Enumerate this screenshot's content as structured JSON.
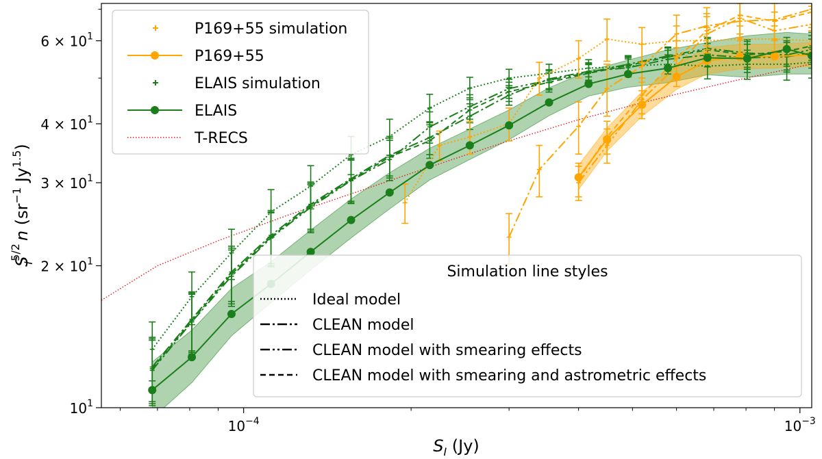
{
  "chart_data": {
    "type": "line",
    "xscale": "log",
    "yscale": "log",
    "xlabel": "S_I (Jy)",
    "ylabel": "S_I^{5/2} n (sr^-1 Jy^1.5)",
    "xlim": [
      5.55e-05,
      0.00105
    ],
    "ylim": [
      10,
      72
    ],
    "x_ticks": [
      {
        "value": 0.0001,
        "base": "10",
        "exp": "−4"
      },
      {
        "value": 0.001,
        "base": "10",
        "exp": "−3"
      }
    ],
    "y_ticks": [
      {
        "value": 10,
        "base": "10",
        "exp": "1",
        "mant": ""
      },
      {
        "value": 20,
        "base": "10",
        "exp": "1",
        "mant": "2 × "
      },
      {
        "value": 30,
        "base": "10",
        "exp": "1",
        "mant": "3 × "
      },
      {
        "value": 40,
        "base": "10",
        "exp": "1",
        "mant": "4 × "
      },
      {
        "value": 60,
        "base": "10",
        "exp": "1",
        "mant": "6 × "
      }
    ],
    "colors": {
      "elais": "#1a7f1a",
      "p169": "#ffa500",
      "trecs": "#e8161b"
    },
    "legend_main": {
      "position": "top-left",
      "entries": [
        {
          "label": "P169+55 simulation",
          "kind": "cross",
          "color": "#ffa500"
        },
        {
          "label": "P169+55",
          "kind": "line-dot",
          "color": "#ffa500"
        },
        {
          "label": "ELAIS simulation",
          "kind": "cross",
          "color": "#1a7f1a"
        },
        {
          "label": "ELAIS",
          "kind": "line-dot",
          "color": "#1a7f1a"
        },
        {
          "label": "T-RECS",
          "kind": "dotted",
          "color": "#e8161b"
        }
      ]
    },
    "legend_styles": {
      "title": "Simulation line styles",
      "position": "lower-right",
      "entries": [
        {
          "label": "Ideal model",
          "dash": "2,3"
        },
        {
          "label": "CLEAN model",
          "dash": "14,4,3,4"
        },
        {
          "label": "CLEAN model with smearing effects",
          "dash": "14,4,3,4,3,4"
        },
        {
          "label": "CLEAN model with smearing and astrometric effects",
          "dash": "8,5"
        }
      ]
    },
    "trecs": {
      "x": [
        5.55e-05,
        7e-05,
        9e-05,
        0.00012,
        0.00016,
        0.0002,
        0.00025,
        0.0003,
        0.0004,
        0.0005,
        0.0006,
        0.0007,
        0.0008,
        0.0009,
        0.00105
      ],
      "y": [
        16.9,
        20.0,
        22.6,
        25.6,
        28.7,
        31.4,
        34.3,
        36.8,
        40.8,
        43.8,
        46.2,
        48.2,
        50.0,
        51.5,
        53.6
      ]
    },
    "elais": {
      "x": [
        6.85e-05,
        8.07e-05,
        9.51e-05,
        0.000112,
        0.000132,
        0.000156,
        0.000183,
        0.000216,
        0.000255,
        0.0003,
        0.000354,
        0.000417,
        0.000491,
        0.000579,
        0.000682,
        0.000804,
        0.000947,
        0.00105
      ],
      "y": [
        10.9,
        12.8,
        15.8,
        18.3,
        21.4,
        25.0,
        28.6,
        32.7,
        36.0,
        39.7,
        44.4,
        48.6,
        51.0,
        52.5,
        55.2,
        55.0,
        57.6,
        55.8
      ],
      "band_low": [
        9.5,
        11.3,
        14.2,
        16.7,
        19.6,
        22.9,
        26.4,
        30.4,
        33.6,
        37.0,
        41.6,
        45.8,
        47.8,
        48.9,
        50.8,
        50.2,
        51.0,
        51.0
      ],
      "band_high": [
        12.5,
        14.6,
        17.9,
        20.4,
        23.8,
        27.7,
        31.5,
        35.5,
        39.0,
        42.8,
        47.7,
        51.8,
        54.6,
        57.4,
        59.5,
        61.5,
        62.5,
        62.0
      ]
    },
    "elais_ideal": {
      "x": [
        6.85e-05,
        8.07e-05,
        9.51e-05,
        0.000112,
        0.000132,
        0.000156,
        0.000183,
        0.000216,
        0.000255,
        0.0003,
        0.000354,
        0.000417,
        0.000491,
        0.000579,
        0.000682,
        0.000804,
        0.000947,
        0.00105
      ],
      "y": [
        13.3,
        17.2,
        21.3,
        26.0,
        29.5,
        34.4,
        37.6,
        43.2,
        47.6,
        50.0,
        51.2,
        52.5,
        53.0,
        53.5,
        53.0,
        53.5,
        53.5,
        54.0
      ]
    },
    "elais_clean": {
      "x": [
        6.85e-05,
        8.07e-05,
        9.51e-05,
        0.000112,
        0.000132,
        0.000156,
        0.000183,
        0.000216,
        0.000255,
        0.0003,
        0.000354,
        0.000417,
        0.000491,
        0.000579,
        0.000682,
        0.000804,
        0.000947,
        0.00105
      ],
      "y": [
        12.2,
        15.4,
        19.4,
        23.2,
        27.0,
        30.6,
        34.3,
        37.4,
        41.5,
        46.0,
        49.8,
        51.7,
        52.6,
        54.8,
        56.0,
        55.2,
        55.5,
        56.5
      ]
    },
    "elais_smear": {
      "x": [
        6.85e-05,
        8.07e-05,
        9.51e-05,
        0.000112,
        0.000132,
        0.000156,
        0.000183,
        0.000216,
        0.000255,
        0.0003,
        0.000354,
        0.000417,
        0.000491,
        0.000579,
        0.000682,
        0.000804,
        0.000947,
        0.00105
      ],
      "y": [
        12.0,
        15.2,
        19.0,
        22.9,
        26.6,
        30.3,
        33.6,
        39.4,
        43.5,
        47.5,
        49.5,
        51.4,
        53.5,
        55.7,
        57.8,
        56.5,
        56.0,
        57.5
      ]
    },
    "elais_astro": {
      "x": [
        6.85e-05,
        8.07e-05,
        9.51e-05,
        0.000112,
        0.000132,
        0.000156,
        0.000183,
        0.000216,
        0.000255,
        0.0003,
        0.000354,
        0.000417,
        0.000491,
        0.000579,
        0.000682,
        0.000804,
        0.000947,
        0.00105
      ],
      "y": [
        12.1,
        15.3,
        19.2,
        23.0,
        26.8,
        30.4,
        34.0,
        36.8,
        42.8,
        46.8,
        49.0,
        51.2,
        53.2,
        55.4,
        57.4,
        56.0,
        57.0,
        58.5
      ]
    },
    "elais_sim_err": [
      1.9,
      2.2,
      2.6,
      3.0,
      3.1,
      3.2,
      3.3,
      3.0,
      2.6,
      2.2,
      2.3,
      2.2,
      2.3,
      2.5,
      3.2,
      3.8,
      4.0,
      4.0
    ],
    "p169": {
      "x": [
        0.0004,
        0.00045,
        0.00052,
        0.0006,
        0.00068,
        0.00078,
        0.0009,
        0.00105
      ],
      "y": [
        30.8,
        37.1,
        43.9,
        50.3,
        54.4,
        55.5,
        55.6,
        56.0
      ],
      "band_low": [
        29.0,
        35.0,
        41.5,
        47.3,
        51.0,
        52.3,
        52.5,
        53.0
      ],
      "band_high": [
        32.7,
        39.2,
        46.8,
        53.5,
        58.0,
        59.0,
        59.0,
        59.5
      ]
    },
    "p169_ideal": {
      "x": [
        0.000195,
        0.000225,
        0.000255,
        0.0003,
        0.00034,
        0.0004,
        0.00045,
        0.00052,
        0.0006,
        0.00068,
        0.00078,
        0.0009,
        0.00105
      ],
      "y": [
        27.2,
        36.0,
        37.5,
        40.0,
        50.0,
        55.0,
        60.5,
        59.0,
        60.0,
        60.0,
        60.5,
        60.5,
        60.0
      ],
      "err": [
        2.6,
        2.6,
        3.0,
        3.2,
        4.0,
        5.0,
        6.2,
        5.0,
        4.5,
        4.0,
        4.0,
        4.0,
        4.0
      ]
    },
    "p169_clean": {
      "x": [
        0.0003,
        0.00034,
        0.0004,
        0.00045,
        0.00052,
        0.0006,
        0.00068,
        0.00078,
        0.0009,
        0.00105
      ],
      "y": [
        23.0,
        32.0,
        39.5,
        47.5,
        53.0,
        62.0,
        64.5,
        66.0,
        66.5,
        70.0
      ],
      "err": [
        2.8,
        4.0,
        5.0,
        6.0,
        6.0,
        6.0,
        6.0,
        6.0,
        6.0,
        6.0
      ]
    },
    "p169_smear": {
      "x": [
        0.0004,
        0.00045,
        0.00052,
        0.0006,
        0.00068,
        0.00078,
        0.0009,
        0.00105
      ],
      "y": [
        30.0,
        36.0,
        45.0,
        53.0,
        62.0,
        67.0,
        63.0,
        65.0
      ],
      "err": [
        2.5,
        3.0,
        4.0,
        5.0,
        5.5,
        6.0,
        6.0,
        6.0
      ]
    },
    "p169_astro": {
      "x": [
        0.0004,
        0.00045,
        0.00052,
        0.0006,
        0.00068,
        0.00078,
        0.0009,
        0.00105
      ],
      "y": [
        30.5,
        37.5,
        46.0,
        55.0,
        63.0,
        68.0,
        66.0,
        69.0
      ],
      "err": [
        2.5,
        3.0,
        4.0,
        5.0,
        5.5,
        6.0,
        6.0,
        6.0
      ]
    }
  }
}
